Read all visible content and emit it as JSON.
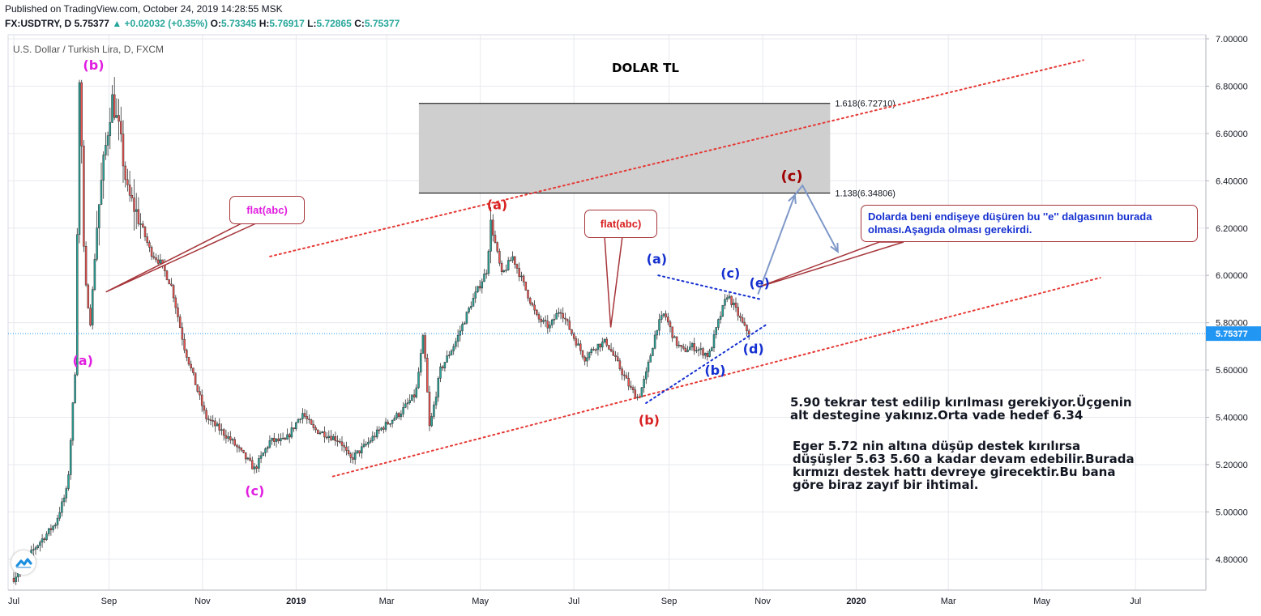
{
  "header": {
    "published": "Published on TradingView.com, October 24, 2019 14:28:55 MSK",
    "symbol": "FX:USDTRY, D",
    "last": "5.75377",
    "change": "+0.02032 (+0.35%)",
    "o_label": "O:",
    "o": "5.73345",
    "h_label": "H:",
    "h": "5.76917",
    "l_label": "L:",
    "l": "5.72865",
    "c_label": "C:",
    "c": "5.75377"
  },
  "chart_data": {
    "type": "candlestick",
    "series_label": "U.S. Dollar / Turkish Lira, D, FXCM",
    "title": "DOLAR TL",
    "ylim": [
      4.66,
      7.02
    ],
    "y_ticks": [
      "7.00000",
      "6.80000",
      "6.60000",
      "6.40000",
      "6.20000",
      "6.00000",
      "5.80000",
      "5.60000",
      "5.40000",
      "5.20000",
      "5.00000",
      "4.80000"
    ],
    "y_tick_values": [
      7.0,
      6.8,
      6.6,
      6.4,
      6.2,
      6.0,
      5.8,
      5.6,
      5.4,
      5.2,
      5.0,
      4.8
    ],
    "x_ticks": [
      "Jul",
      "Sep",
      "Nov",
      "2019",
      "Mar",
      "May",
      "Jul",
      "Sep",
      "Nov",
      "2020",
      "Mar",
      "May",
      "Jul"
    ],
    "x_tick_dates": [
      "2018-07-01",
      "2018-09-01",
      "2018-11-01",
      "2019-01-01",
      "2019-03-01",
      "2019-05-01",
      "2019-07-01",
      "2019-09-01",
      "2019-11-01",
      "2020-01-01",
      "2020-03-01",
      "2020-05-01",
      "2020-07-01"
    ],
    "bold_ticks": [
      "2019",
      "2020"
    ],
    "last_price": 5.75377,
    "last_price_label": "5.75377",
    "price_path": [
      [
        "2018-07-01",
        4.72
      ],
      [
        "2018-07-15",
        4.85
      ],
      [
        "2018-07-28",
        4.95
      ],
      [
        "2018-08-05",
        5.1
      ],
      [
        "2018-08-10",
        5.6
      ],
      [
        "2018-08-13",
        6.9
      ],
      [
        "2018-08-16",
        6.0
      ],
      [
        "2018-08-20",
        5.8
      ],
      [
        "2018-08-24",
        6.2
      ],
      [
        "2018-08-28",
        6.45
      ],
      [
        "2018-09-03",
        6.75
      ],
      [
        "2018-09-08",
        6.6
      ],
      [
        "2018-09-13",
        6.35
      ],
      [
        "2018-09-20",
        6.25
      ],
      [
        "2018-09-28",
        6.1
      ],
      [
        "2018-10-05",
        6.05
      ],
      [
        "2018-10-12",
        5.95
      ],
      [
        "2018-10-20",
        5.7
      ],
      [
        "2018-10-27",
        5.55
      ],
      [
        "2018-11-03",
        5.4
      ],
      [
        "2018-11-12",
        5.35
      ],
      [
        "2018-11-20",
        5.3
      ],
      [
        "2018-11-30",
        5.22
      ],
      [
        "2018-12-05",
        5.18
      ],
      [
        "2018-12-15",
        5.3
      ],
      [
        "2018-12-25",
        5.3
      ],
      [
        "2019-01-05",
        5.42
      ],
      [
        "2019-01-12",
        5.35
      ],
      [
        "2019-01-20",
        5.33
      ],
      [
        "2019-01-30",
        5.3
      ],
      [
        "2019-02-05",
        5.22
      ],
      [
        "2019-02-15",
        5.28
      ],
      [
        "2019-02-25",
        5.35
      ],
      [
        "2019-03-10",
        5.42
      ],
      [
        "2019-03-20",
        5.5
      ],
      [
        "2019-03-25",
        5.75
      ],
      [
        "2019-03-29",
        5.35
      ],
      [
        "2019-04-05",
        5.6
      ],
      [
        "2019-04-15",
        5.72
      ],
      [
        "2019-04-25",
        5.88
      ],
      [
        "2019-05-05",
        6.02
      ],
      [
        "2019-05-08",
        6.22
      ],
      [
        "2019-05-15",
        6.0
      ],
      [
        "2019-05-22",
        6.08
      ],
      [
        "2019-05-30",
        5.95
      ],
      [
        "2019-06-07",
        5.82
      ],
      [
        "2019-06-15",
        5.78
      ],
      [
        "2019-06-22",
        5.86
      ],
      [
        "2019-06-30",
        5.75
      ],
      [
        "2019-07-08",
        5.65
      ],
      [
        "2019-07-15",
        5.7
      ],
      [
        "2019-07-22",
        5.72
      ],
      [
        "2019-07-30",
        5.62
      ],
      [
        "2019-08-07",
        5.52
      ],
      [
        "2019-08-12",
        5.48
      ],
      [
        "2019-08-17",
        5.58
      ],
      [
        "2019-08-24",
        5.78
      ],
      [
        "2019-08-29",
        5.84
      ],
      [
        "2019-09-05",
        5.72
      ],
      [
        "2019-09-10",
        5.68
      ],
      [
        "2019-09-16",
        5.7
      ],
      [
        "2019-09-22",
        5.68
      ],
      [
        "2019-09-27",
        5.66
      ],
      [
        "2019-10-03",
        5.8
      ],
      [
        "2019-10-09",
        5.92
      ],
      [
        "2019-10-14",
        5.86
      ],
      [
        "2019-10-20",
        5.78
      ],
      [
        "2019-10-24",
        5.75377
      ]
    ],
    "fib_zone": {
      "from_date": "2019-03-22",
      "to_date": "2019-12-15",
      "top": 6.7271,
      "bottom": 6.34806,
      "label_top": "1.618(6.72710)",
      "label_bottom": "1.138(6.34806)"
    },
    "trendlines": [
      {
        "style": "red-dotted",
        "from": [
          "2018-12-15",
          6.08
        ],
        "to": [
          "2020-05-28",
          6.91
        ]
      },
      {
        "style": "red-dotted",
        "from": [
          "2019-01-25",
          5.15
        ],
        "to": [
          "2020-06-08",
          5.99
        ]
      },
      {
        "style": "blue-dotted",
        "from": [
          "2019-08-25",
          6.0
        ],
        "to": [
          "2019-10-30",
          5.9
        ]
      },
      {
        "style": "blue-dotted",
        "from": [
          "2019-08-17",
          5.46
        ],
        "to": [
          "2019-11-03",
          5.79
        ]
      }
    ],
    "projection": [
      [
        "2019-10-29",
        5.92
      ],
      [
        "2019-11-22",
        6.34
      ],
      [
        "2019-11-27",
        6.38
      ],
      [
        "2019-12-20",
        6.1
      ]
    ],
    "wave_labels": [
      {
        "text": "(b)",
        "color": "#e11fe0",
        "at": [
          "2018-08-22",
          6.87
        ]
      },
      {
        "text": "(a)",
        "color": "#e11fe0",
        "at": [
          "2018-08-15",
          5.62
        ]
      },
      {
        "text": "(c)",
        "color": "#e11fe0",
        "at": [
          "2018-12-05",
          5.07
        ]
      },
      {
        "text": "(a)",
        "color": "#d82020",
        "at": [
          "2019-05-12",
          6.28
        ]
      },
      {
        "text": "(b)",
        "color": "#d82020",
        "at": [
          "2019-08-19",
          5.37
        ]
      },
      {
        "text": "(a)",
        "color": "#1530d0",
        "at": [
          "2019-08-24",
          6.05
        ]
      },
      {
        "text": "(b)",
        "color": "#1530d0",
        "at": [
          "2019-10-01",
          5.58
        ]
      },
      {
        "text": "(c)",
        "color": "#1530d0",
        "at": [
          "2019-10-11",
          5.99
        ]
      },
      {
        "text": "(d)",
        "color": "#1530d0",
        "at": [
          "2019-10-26",
          5.67
        ]
      },
      {
        "text": "(e)",
        "color": "#1530d0",
        "at": [
          "2019-10-30",
          5.95
        ]
      },
      {
        "text": "(c)",
        "color": "#a00000",
        "at": [
          "2019-11-20",
          6.4
        ]
      }
    ],
    "callouts": [
      {
        "text": "flat(abc)",
        "color": "#e11fe0",
        "tail_to": [
          "2018-08-30",
          5.93
        ]
      },
      {
        "text": "flat(abc)",
        "color": "#d82020",
        "tail_to": [
          "2019-07-25",
          5.78
        ]
      },
      {
        "text": "Dolarda beni endişeye düşüren bu ''e'' dalgasının burada olması.Aşagıda olması gerekirdi.",
        "color": "#1530d0",
        "tail_to": [
          "2019-10-29",
          5.95
        ]
      }
    ]
  },
  "notes": {
    "note1": "5.90 tekrar test edilip kırılması gerekiyor.Üçgenin\nalt destegine yakınız.Orta vade hedef 6.34",
    "note2": "Eger 5.72 nin altına düşüp destek kırılırsa\ndüşüşler 5.63  5.60 a kadar devam edebilir.Burada\nkırmızı destek hattı devreye girecektir.Bu bana\ngöre biraz zayıf bir ihtimal."
  },
  "colors": {
    "up": "#26a69a",
    "down": "#ef5350",
    "candle_body": "#333333",
    "price_line": "#2196f3",
    "grid": "#e6e9ee",
    "fib_zone": "#cccccc"
  },
  "icons": {
    "logo": "tradingview-logo-icon"
  }
}
